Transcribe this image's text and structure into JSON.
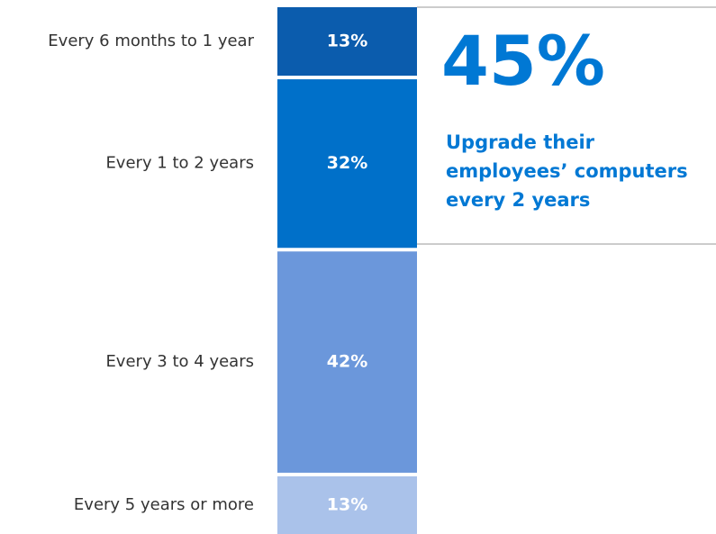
{
  "chart_data": {
    "type": "stacked-bar",
    "categories": [
      "Every 6 months to 1 year",
      "Every 1 to 2 years",
      "Every 3 to 4 years",
      "Every 5 years or more"
    ],
    "values": [
      13,
      32,
      42,
      13
    ],
    "value_labels": [
      "13%",
      "32%",
      "42%",
      "13%"
    ],
    "colors": [
      "#0b5cad",
      "#0070c9",
      "#6b97db",
      "#aac2ea"
    ],
    "ylim": [
      0,
      100
    ],
    "callout": {
      "headline": "45%",
      "text": "Upgrade their employees’ computers every 2 years",
      "color": "#0078d4"
    }
  }
}
